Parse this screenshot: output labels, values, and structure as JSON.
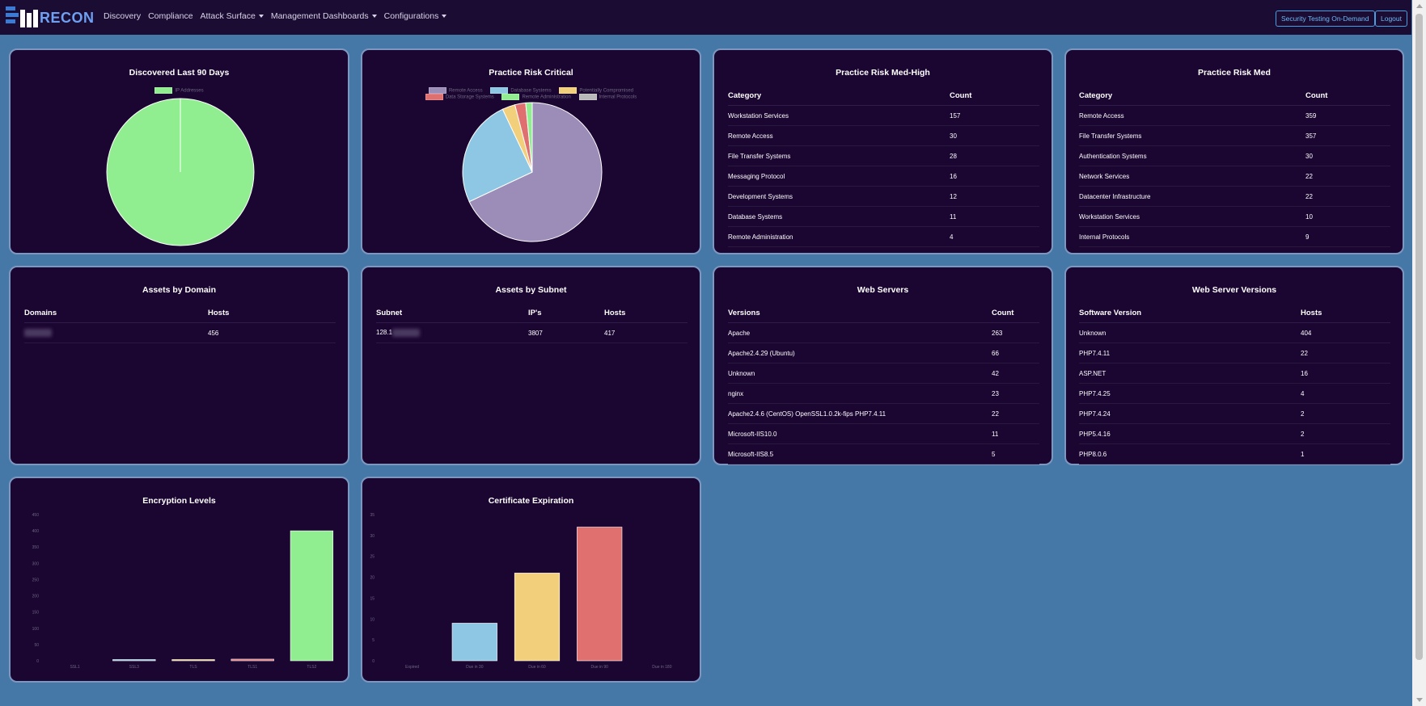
{
  "nav": {
    "brand": "RECON",
    "links": [
      "Discovery",
      "Compliance",
      "Attack Surface",
      "Management Dashboards",
      "Configurations"
    ],
    "security_button": "Security Testing On-Demand",
    "logout_button": "Logout"
  },
  "colors": {
    "navbar": "#1b0c33",
    "card": "#1b0531",
    "background": "#4578a7",
    "green": "#90ee90",
    "purple": "#9b8cb8",
    "blue": "#8ec7e3",
    "yellow": "#f2cf7a",
    "red": "#e07070"
  },
  "cards": {
    "discovered": {
      "title": "Discovered Last 90 Days"
    },
    "risk_critical": {
      "title": "Practice Risk Critical"
    },
    "risk_medhigh": {
      "title": "Practice Risk Med-High",
      "col1": "Category",
      "col2": "Count",
      "rows": [
        [
          "Workstation Services",
          "157"
        ],
        [
          "Remote Access",
          "30"
        ],
        [
          "File Transfer Systems",
          "28"
        ],
        [
          "Messaging Protocol",
          "16"
        ],
        [
          "Development Systems",
          "12"
        ],
        [
          "Database Systems",
          "11"
        ],
        [
          "Remote Administration",
          "4"
        ]
      ]
    },
    "risk_med": {
      "title": "Practice Risk Med",
      "col1": "Category",
      "col2": "Count",
      "rows": [
        [
          "Remote Access",
          "359"
        ],
        [
          "File Transfer Systems",
          "357"
        ],
        [
          "Authentication Systems",
          "30"
        ],
        [
          "Network Services",
          "22"
        ],
        [
          "Datacenter Infrastructure",
          "22"
        ],
        [
          "Workstation Services",
          "10"
        ],
        [
          "Internal Protocols",
          "9"
        ]
      ]
    },
    "assets_domain": {
      "title": "Assets by Domain",
      "col1": "Domains",
      "col2": "Hosts",
      "rows": [
        [
          "",
          "456"
        ]
      ]
    },
    "assets_subnet": {
      "title": "Assets by Subnet",
      "col1": "Subnet",
      "col2": "IP's",
      "col3": "Hosts",
      "rows": [
        [
          "128.1",
          "3807",
          "417"
        ]
      ]
    },
    "web_servers": {
      "title": "Web Servers",
      "col1": "Versions",
      "col2": "Count",
      "rows": [
        [
          "Apache",
          "263"
        ],
        [
          "Apache2.4.29 (Ubuntu)",
          "66"
        ],
        [
          "Unknown",
          "42"
        ],
        [
          "nginx",
          "23"
        ],
        [
          "Apache2.4.6 (CentOS) OpenSSL1.0.2k-fips PHP7.4.11",
          "22"
        ],
        [
          "Microsoft-IIS10.0",
          "11"
        ],
        [
          "Microsoft-IIS8.5",
          "5"
        ]
      ]
    },
    "web_versions": {
      "title": "Web Server Versions",
      "col1": "Software Version",
      "col2": "Hosts",
      "rows": [
        [
          "Unknown",
          "404"
        ],
        [
          "PHP7.4.11",
          "22"
        ],
        [
          "ASP.NET",
          "16"
        ],
        [
          "PHP7.4.25",
          "4"
        ],
        [
          "PHP7.4.24",
          "2"
        ],
        [
          "PHP5.4.16",
          "2"
        ],
        [
          "PHP8.0.6",
          "1"
        ]
      ]
    },
    "encryption": {
      "title": "Encryption Levels"
    },
    "certificates": {
      "title": "Certificate Expiration"
    }
  },
  "chart_data": [
    {
      "type": "pie",
      "title": "Discovered Last 90 Days",
      "legend": [
        "IP Addresses"
      ],
      "values": [
        1
      ],
      "colors": [
        "#90ee90"
      ]
    },
    {
      "type": "pie",
      "title": "Practice Risk Critical",
      "legend": [
        "Remote Access",
        "Database Systems",
        "Potentially Compromised",
        "Data Storage Systems",
        "Remote Administration",
        "Internal Protocols"
      ],
      "values": [
        68,
        25,
        3,
        2.5,
        1.5,
        0
      ],
      "colors": [
        "#9b8cb8",
        "#8ec7e3",
        "#f2cf7a",
        "#e07070",
        "#90ee90",
        "#b8b8b8"
      ]
    },
    {
      "type": "bar",
      "title": "Encryption Levels",
      "categories": [
        "SSL1",
        "SSL3",
        "TLS",
        "TLS1",
        "TLS2"
      ],
      "values": [
        0,
        3,
        2,
        5,
        400
      ],
      "colors": [
        "#9b8cb8",
        "#8ec7e3",
        "#f2cf7a",
        "#e07070",
        "#90ee90"
      ],
      "ylim": [
        0,
        450
      ],
      "yticks": [
        0,
        50,
        100,
        150,
        200,
        250,
        300,
        350,
        400,
        450
      ]
    },
    {
      "type": "bar",
      "title": "Certificate Expiration",
      "categories": [
        "Expired",
        "Due in 30",
        "Due in 60",
        "Due in 90",
        "Due in 180"
      ],
      "values": [
        0,
        9,
        21,
        32,
        0
      ],
      "colors": [
        "#9b8cb8",
        "#8ec7e3",
        "#f2cf7a",
        "#e07070",
        "#90ee90"
      ],
      "ylim": [
        0,
        35
      ],
      "yticks": [
        0,
        5,
        10,
        15,
        20,
        25,
        30,
        35
      ]
    }
  ]
}
